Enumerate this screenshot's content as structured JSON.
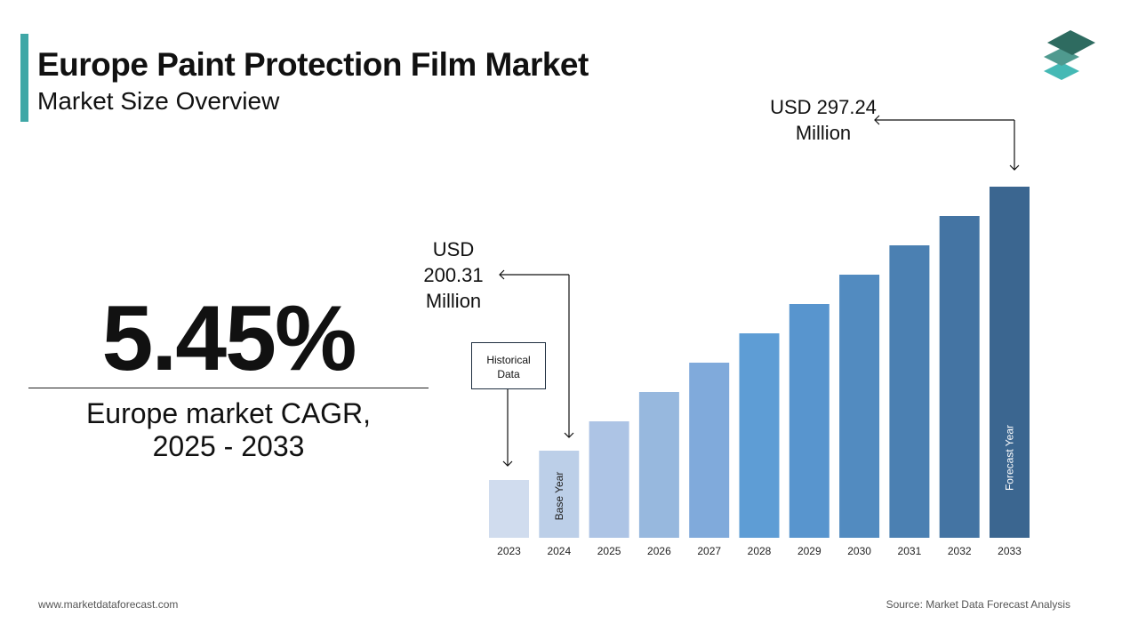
{
  "header": {
    "title": "Europe Paint Protection Film Market",
    "subtitle": "Market Size Overview"
  },
  "logo": {
    "icon": "stacked-layers-logo",
    "colors": [
      "#2e6b60",
      "#4f9a8f",
      "#45b9b5"
    ]
  },
  "kpi": {
    "value": "5.45%",
    "label_line1": "Europe market CAGR,",
    "label_line2": "2025 - 2033"
  },
  "annotations": {
    "start": {
      "line1": "USD",
      "line2": "200.31",
      "line3": "Million"
    },
    "end": {
      "line1": "USD 297.24",
      "line2": "Million"
    },
    "historical": {
      "line1": "Historical",
      "line2": "Data"
    }
  },
  "chart_data": {
    "type": "bar",
    "title": "",
    "xlabel": "",
    "ylabel": "",
    "categories": [
      "2023",
      "2024",
      "2025",
      "2026",
      "2027",
      "2028",
      "2029",
      "2030",
      "2031",
      "2032",
      "2033"
    ],
    "values": [
      null,
      200.31,
      null,
      null,
      null,
      null,
      null,
      null,
      null,
      null,
      297.24
    ],
    "unit": "USD Million",
    "grid": false,
    "bar_labels": {
      "2024": "Base Year",
      "2033": "Forecast Year"
    },
    "colors": [
      "#d0dcee",
      "#bccfe8",
      "#adc4e5",
      "#97b8de",
      "#80aadb",
      "#5e9dd5",
      "#5895ce",
      "#528bc0",
      "#4b80b2",
      "#4474a3",
      "#3b6690"
    ]
  },
  "footer": {
    "website": "www.marketdataforecast.com",
    "source": "Source: Market Data Forecast Analysis"
  }
}
